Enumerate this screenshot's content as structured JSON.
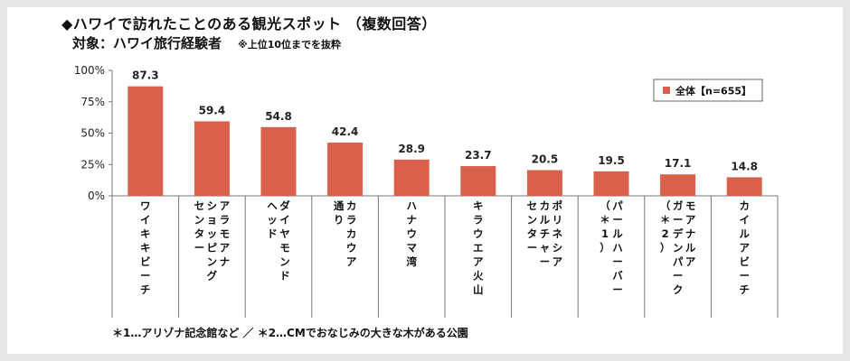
{
  "title": "◆ハワイで訪れたことのある観光スポット （複数回答）",
  "subtitle": "対象：ハワイ旅行経験者",
  "subtitle_note": "※上位10位までを抜粋",
  "footnote": "＊1…アリゾナ記念館など ／ ＊2…CMでおなじみの大きな木がある公園",
  "colors": {
    "bar": "#d9604a",
    "axis": "#777777",
    "grid": "#aaaaaa"
  },
  "chart_data": {
    "type": "bar",
    "categories": [
      [
        "ワイキキビーチ"
      ],
      [
        "アラモアナ",
        "ショッピング",
        "センター"
      ],
      [
        "ダイヤモンド",
        "ヘッド"
      ],
      [
        "カラカウア",
        "通り"
      ],
      [
        "ハナウマ湾"
      ],
      [
        "キラウエア火山"
      ],
      [
        "ポリネシア",
        "カルチャー",
        "センター"
      ],
      [
        "パールハーバー",
        "（＊1）"
      ],
      [
        "モアナルア",
        "ガーデンパーク",
        "（＊2）"
      ],
      [
        "カイルアビーチ"
      ]
    ],
    "series": [
      {
        "name": "全体【n=655】",
        "values": [
          87.3,
          59.4,
          54.8,
          42.4,
          28.9,
          23.7,
          20.5,
          19.5,
          17.1,
          14.8
        ]
      }
    ],
    "ylim": [
      0,
      100
    ],
    "yticks": [
      "0%",
      "25%",
      "50%",
      "75%",
      "100%"
    ],
    "ytick_values": [
      0,
      25,
      50,
      75,
      100
    ],
    "grid": false,
    "legend_position": "top-right"
  }
}
